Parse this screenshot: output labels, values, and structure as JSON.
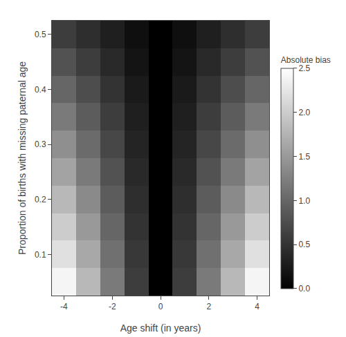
{
  "chart_data": {
    "type": "heatmap",
    "xlabel": "Age shift (in years)",
    "ylabel": "Proportion of births with missing paternal age",
    "x": [
      -4,
      -3,
      -2,
      -1,
      0,
      1,
      2,
      3,
      4
    ],
    "y": [
      0.05,
      0.1,
      0.15,
      0.2,
      0.25,
      0.3,
      0.35,
      0.4,
      0.45,
      0.5
    ],
    "values": [
      [
        2.4,
        1.8,
        1.2,
        0.6,
        0.0,
        0.6,
        1.2,
        1.8,
        2.4
      ],
      [
        2.2,
        1.65,
        1.1,
        0.55,
        0.0,
        0.55,
        1.1,
        1.65,
        2.2
      ],
      [
        2.0,
        1.5,
        1.0,
        0.5,
        0.0,
        0.5,
        1.0,
        1.5,
        2.0
      ],
      [
        1.8,
        1.35,
        0.9,
        0.45,
        0.0,
        0.45,
        0.9,
        1.35,
        1.8
      ],
      [
        1.6,
        1.2,
        0.8,
        0.4,
        0.0,
        0.4,
        0.8,
        1.2,
        1.6
      ],
      [
        1.4,
        1.05,
        0.7,
        0.35,
        0.0,
        0.35,
        0.7,
        1.05,
        1.4
      ],
      [
        1.2,
        0.9,
        0.6,
        0.3,
        0.0,
        0.3,
        0.6,
        0.9,
        1.2
      ],
      [
        1.0,
        0.75,
        0.5,
        0.25,
        0.0,
        0.25,
        0.5,
        0.75,
        1.0
      ],
      [
        0.8,
        0.6,
        0.4,
        0.2,
        0.0,
        0.2,
        0.4,
        0.6,
        0.8
      ],
      [
        0.6,
        0.45,
        0.3,
        0.15,
        0.0,
        0.15,
        0.3,
        0.45,
        0.6
      ]
    ],
    "xlim": [
      -4.5,
      4.5
    ],
    "ylim": [
      0.025,
      0.525
    ],
    "xticks": [
      -4,
      -2,
      0,
      2,
      4
    ],
    "yticks": [
      0.1,
      0.2,
      0.3,
      0.4,
      0.5
    ],
    "colorbar_label": "Absolute bias",
    "colorbar_range": [
      0.0,
      2.5
    ],
    "colorbar_ticks": [
      {
        "value": 0.0,
        "label": "0.0"
      },
      0.5,
      {
        "value": 1.0,
        "label": "1.0"
      },
      1.5,
      {
        "value": 2.0,
        "label": "2.0"
      },
      2.5
    ],
    "grid": false
  }
}
